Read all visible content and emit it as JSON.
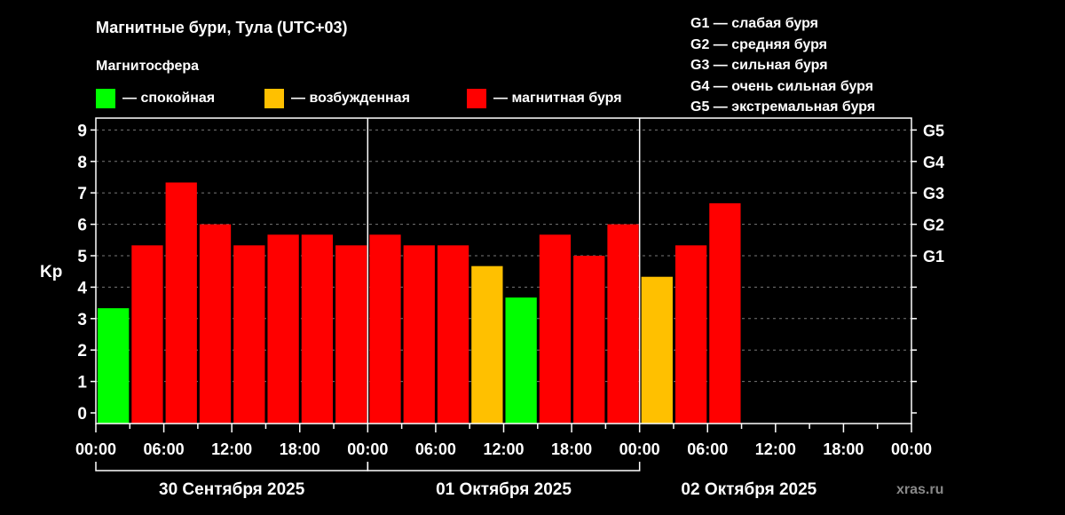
{
  "title": "Магнитные бури, Тула (UTC+03)",
  "legend": {
    "title": "Магнитосфера",
    "items": [
      {
        "label": "— спокойная",
        "color": "#00ff00"
      },
      {
        "label": "— возбужденная",
        "color": "#ffc000"
      },
      {
        "label": "— магнитная буря",
        "color": "#ff0000"
      }
    ]
  },
  "g_scale": [
    "G1 — слабая буря",
    "G2 — средняя буря",
    "G3 — сильная буря",
    "G4 — очень сильная буря",
    "G5 — экстремальная буря"
  ],
  "watermark": "xras.ru",
  "chart_data": {
    "type": "bar",
    "title": "Магнитные бури, Тула (UTC+03)",
    "ylabel": "Kp",
    "ylim": [
      0,
      9
    ],
    "yticks": [
      0,
      1,
      2,
      3,
      4,
      5,
      6,
      7,
      8,
      9
    ],
    "right_ticks": [
      {
        "value": 5,
        "label": "G1"
      },
      {
        "value": 6,
        "label": "G2"
      },
      {
        "value": 7,
        "label": "G3"
      },
      {
        "value": 8,
        "label": "G4"
      },
      {
        "value": 9,
        "label": "G5"
      }
    ],
    "slot_hours": 3,
    "total_slots": 24,
    "xtick_labels": [
      "00:00",
      "06:00",
      "12:00",
      "18:00",
      "00:00",
      "06:00",
      "12:00",
      "18:00",
      "00:00",
      "06:00",
      "12:00",
      "18:00",
      "00:00"
    ],
    "days": [
      "30 Сентября 2025",
      "01 Октября 2025",
      "02 Октября 2025"
    ],
    "grid": "horizontal dashed",
    "values": [
      3.33,
      5.33,
      7.33,
      6.0,
      5.33,
      5.67,
      5.67,
      5.33,
      5.67,
      5.33,
      5.33,
      4.67,
      3.67,
      5.67,
      5.0,
      6.0,
      4.33,
      5.33,
      6.67
    ],
    "colors": [
      "#00ff00",
      "#ff0000",
      "#ff0000",
      "#ff0000",
      "#ff0000",
      "#ff0000",
      "#ff0000",
      "#ff0000",
      "#ff0000",
      "#ff0000",
      "#ff0000",
      "#ffc000",
      "#00ff00",
      "#ff0000",
      "#ff0000",
      "#ff0000",
      "#ffc000",
      "#ff0000",
      "#ff0000"
    ]
  }
}
